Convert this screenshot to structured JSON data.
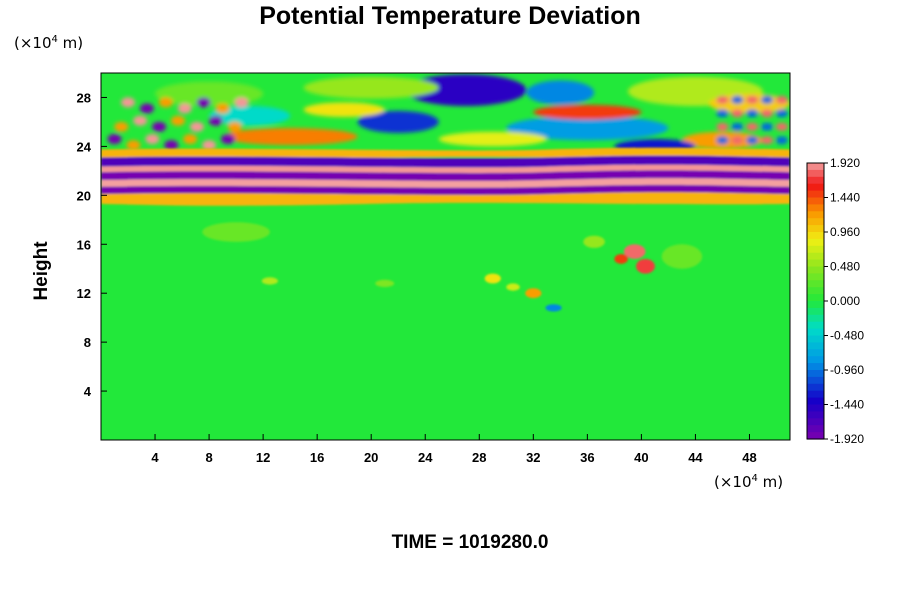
{
  "chart_data": {
    "type": "heatmap",
    "title": "Potential Temperature Deviation",
    "ylabel": "Height",
    "xlabel": "",
    "y_unit_prefix": "(×10",
    "y_unit_exp": "4",
    "y_unit_suffix": " m)",
    "x_unit_prefix": "(×10",
    "x_unit_exp": "4",
    "x_unit_suffix": " m)",
    "xlim": [
      0,
      51
    ],
    "ylim": [
      0,
      30
    ],
    "x_ticks": [
      4,
      8,
      12,
      16,
      20,
      24,
      28,
      32,
      36,
      40,
      44,
      48
    ],
    "y_ticks": [
      4,
      8,
      12,
      16,
      20,
      24,
      28
    ],
    "colorbar": {
      "range": [
        -1.92,
        1.92
      ],
      "tick_labels": [
        "1.920",
        "1.440",
        "0.960",
        "0.480",
        "0.000",
        "-0.480",
        "-0.960",
        "-1.440",
        "-1.920"
      ],
      "tick_values": [
        1.92,
        1.44,
        0.96,
        0.48,
        0.0,
        -0.48,
        -0.96,
        -1.44,
        -1.92
      ]
    },
    "time_label": "TIME = 1019280.0",
    "colors": {
      "background": "#ffffff",
      "neutral": "#22e83a",
      "max": "#f4a0a0",
      "min": "#7a00b0"
    }
  }
}
